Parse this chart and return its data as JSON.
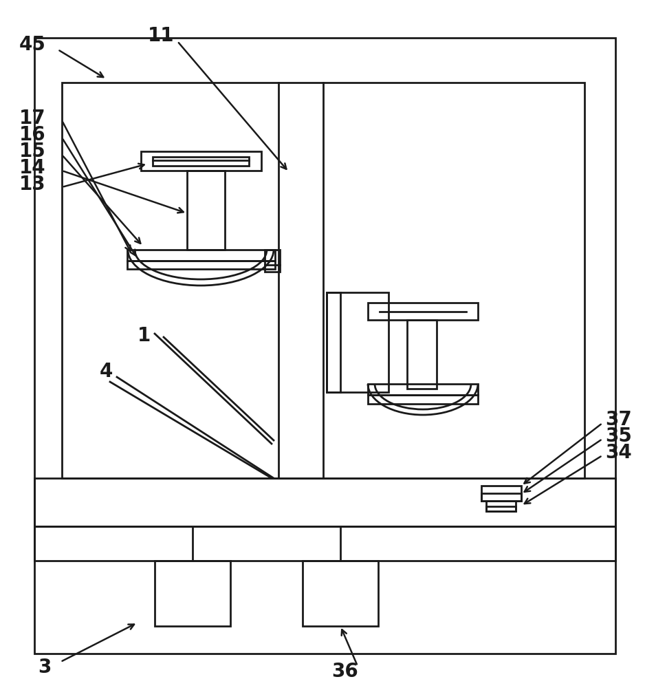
{
  "bg_color": "#ffffff",
  "line_color": "#1a1a1a",
  "lw": 2.0,
  "label_fs": 20,
  "arrow_lw": 1.8
}
